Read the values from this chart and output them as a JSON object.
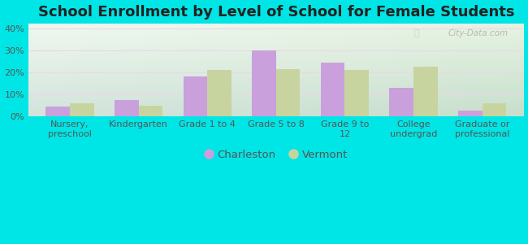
{
  "title": "School Enrollment by Level of School for Female Students",
  "categories": [
    "Nursery,\npreschool",
    "Kindergarten",
    "Grade 1 to 4",
    "Grade 5 to 8",
    "Grade 9 to\n12",
    "College\nundergrad",
    "Graduate or\nprofessional"
  ],
  "charleston": [
    4.5,
    7.5,
    18.0,
    30.0,
    24.5,
    13.0,
    2.5
  ],
  "vermont": [
    6.0,
    5.0,
    21.0,
    21.5,
    21.0,
    22.5,
    6.0
  ],
  "charleston_color": "#c9a0dc",
  "vermont_color": "#c8d4a0",
  "background_outer": "#00e5e5",
  "ylim": [
    0,
    42
  ],
  "yticks": [
    0,
    10,
    20,
    30,
    40
  ],
  "ytick_labels": [
    "0%",
    "10%",
    "20%",
    "30%",
    "40%"
  ],
  "bar_width": 0.35,
  "legend_labels": [
    "Charleston",
    "Vermont"
  ],
  "title_fontsize": 13,
  "tick_fontsize": 8,
  "legend_fontsize": 9.5
}
